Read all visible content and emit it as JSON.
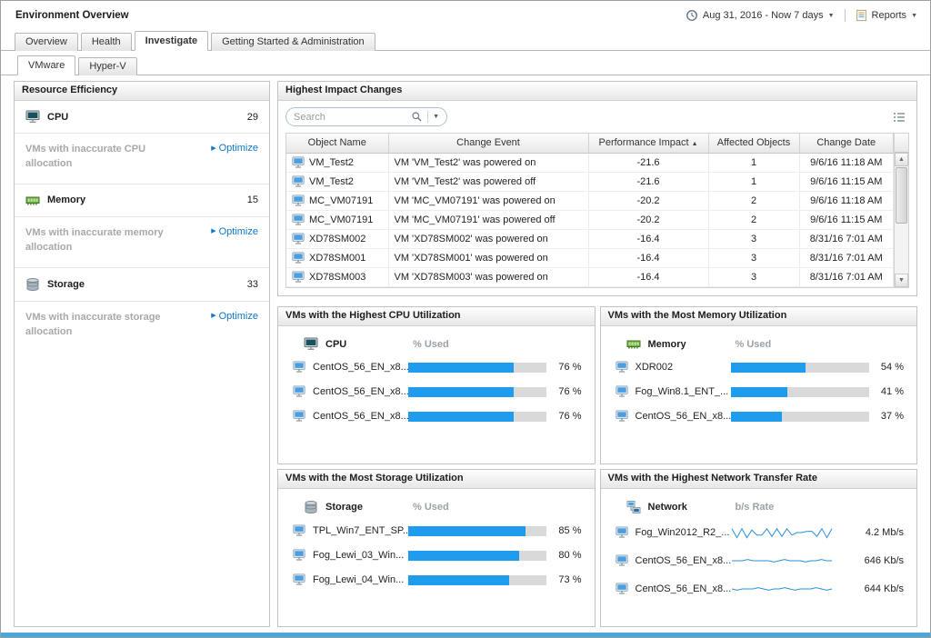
{
  "header": {
    "title": "Environment Overview",
    "time_range": "Aug 31, 2016 - Now 7 days",
    "reports_label": "Reports"
  },
  "main_tabs": [
    {
      "label": "Overview",
      "active": false
    },
    {
      "label": "Health",
      "active": false
    },
    {
      "label": "Investigate",
      "active": true
    },
    {
      "label": "Getting Started & Administration",
      "active": false
    }
  ],
  "sub_tabs": [
    {
      "label": "VMware",
      "active": true
    },
    {
      "label": "Hyper-V",
      "active": false
    }
  ],
  "resource_efficiency": {
    "title": "Resource Efficiency",
    "items": [
      {
        "icon": "cpu-icon",
        "label": "CPU",
        "count": "29",
        "note": "VMs with inaccurate CPU allocation",
        "action_label": "Optimize"
      },
      {
        "icon": "memory-icon",
        "label": "Memory",
        "count": "15",
        "note": "VMs with inaccurate memory allocation",
        "action_label": "Optimize"
      },
      {
        "icon": "storage-icon",
        "label": "Storage",
        "count": "33",
        "note": "VMs with inaccurate storage allocation",
        "action_label": "Optimize"
      }
    ]
  },
  "impact_changes": {
    "title": "Highest Impact Changes",
    "search_placeholder": "Search",
    "columns": [
      {
        "label": "Object Name"
      },
      {
        "label": "Change Event"
      },
      {
        "label": "Performance Impact",
        "sort": "asc"
      },
      {
        "label": "Affected Objects"
      },
      {
        "label": "Change Date"
      }
    ],
    "rows": [
      {
        "object": "VM_Test2",
        "event": "VM 'VM_Test2' was powered on",
        "impact": "-21.6",
        "affected": "1",
        "date": "9/6/16 11:18 AM"
      },
      {
        "object": "VM_Test2",
        "event": "VM 'VM_Test2' was powered off",
        "impact": "-21.6",
        "affected": "1",
        "date": "9/6/16 11:15 AM"
      },
      {
        "object": "MC_VM07191",
        "event": "VM 'MC_VM07191' was powered on",
        "impact": "-20.2",
        "affected": "2",
        "date": "9/6/16 11:18 AM"
      },
      {
        "object": "MC_VM07191",
        "event": "VM 'MC_VM07191' was powered off",
        "impact": "-20.2",
        "affected": "2",
        "date": "9/6/16 11:15 AM"
      },
      {
        "object": "XD78SM002",
        "event": "VM 'XD78SM002' was powered on",
        "impact": "-16.4",
        "affected": "3",
        "date": "8/31/16 7:01 AM"
      },
      {
        "object": "XD78SM001",
        "event": "VM 'XD78SM001' was powered on",
        "impact": "-16.4",
        "affected": "3",
        "date": "8/31/16 7:01 AM"
      },
      {
        "object": "XD78SM003",
        "event": "VM 'XD78SM003' was powered on",
        "impact": "-16.4",
        "affected": "3",
        "date": "8/31/16 7:01 AM"
      }
    ]
  },
  "utilization_panels": [
    {
      "id": "cpu",
      "title": "VMs with the Highest CPU Utilization",
      "metric_label": "CPU",
      "metric_icon": "cpu-icon",
      "value_header": "% Used",
      "display": "bar",
      "rows": [
        {
          "name": "CentOS_56_EN_x8...",
          "percent": 76,
          "value": "76 %"
        },
        {
          "name": "CentOS_56_EN_x8...",
          "percent": 76,
          "value": "76 %"
        },
        {
          "name": "CentOS_56_EN_x8...",
          "percent": 76,
          "value": "76 %"
        }
      ]
    },
    {
      "id": "memory",
      "title": "VMs with the Most Memory Utilization",
      "metric_label": "Memory",
      "metric_icon": "memory-icon",
      "value_header": "% Used",
      "display": "bar",
      "rows": [
        {
          "name": "XDR002",
          "percent": 54,
          "value": "54 %"
        },
        {
          "name": "Fog_Win8.1_ENT_...",
          "percent": 41,
          "value": "41 %"
        },
        {
          "name": "CentOS_56_EN_x8...",
          "percent": 37,
          "value": "37 %"
        }
      ]
    },
    {
      "id": "storage",
      "title": "VMs with the Most Storage Utilization",
      "metric_label": "Storage",
      "metric_icon": "storage-icon",
      "value_header": "% Used",
      "display": "bar",
      "rows": [
        {
          "name": "TPL_Win7_ENT_SP...",
          "percent": 85,
          "value": "85 %"
        },
        {
          "name": "Fog_Lewi_03_Win...",
          "percent": 80,
          "value": "80 %"
        },
        {
          "name": "Fog_Lewi_04_Win...",
          "percent": 73,
          "value": "73 %"
        }
      ]
    },
    {
      "id": "network",
      "title": "VMs with the Highest Network Transfer Rate",
      "metric_label": "Network",
      "metric_icon": "network-icon",
      "value_header": "b/s Rate",
      "display": "sparkline",
      "rows": [
        {
          "name": "Fog_Win2012_R2_...",
          "value": "4.2 Mb/s",
          "spark": [
            8,
            1,
            8,
            1,
            7,
            3,
            3,
            8,
            2,
            8,
            2,
            8,
            3,
            5,
            5,
            6,
            6,
            2,
            8,
            1,
            8
          ]
        },
        {
          "name": "CentOS_56_EN_x8...",
          "value": "646 Kb/s",
          "spark": [
            5,
            5,
            5,
            6,
            5,
            5,
            5,
            5,
            4,
            5,
            6,
            5,
            5,
            5,
            4,
            5,
            5,
            6,
            5,
            5
          ]
        },
        {
          "name": "CentOS_56_EN_x8...",
          "value": "644 Kb/s",
          "spark": [
            5,
            4,
            5,
            5,
            5,
            6,
            5,
            4,
            5,
            5,
            6,
            5,
            4,
            5,
            5,
            5,
            6,
            5,
            4,
            5
          ]
        }
      ]
    }
  ],
  "colors": {
    "bar_fill": "#1f9ced",
    "bar_track": "#d9d9d9",
    "spark_line": "#2a8fd8",
    "accent_link": "#0e76c8",
    "bottom_strip": "#48a8d8"
  }
}
